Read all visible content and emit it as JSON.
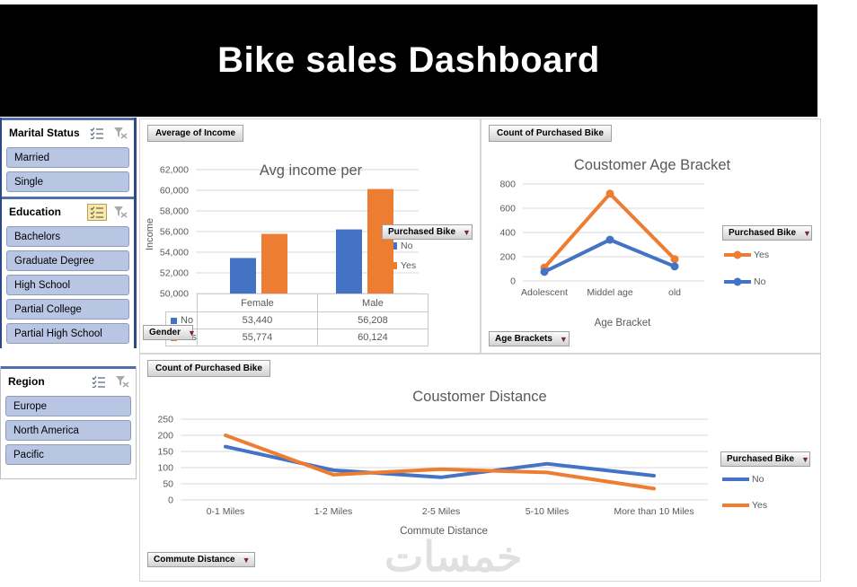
{
  "banner": {
    "title": "Bike sales Dashboard"
  },
  "slicers": [
    {
      "title": "Marital Status",
      "multi_select_active": false,
      "items": [
        "Married",
        "Single"
      ]
    },
    {
      "title": "Education",
      "multi_select_active": true,
      "items": [
        "Bachelors",
        "Graduate Degree",
        "High School",
        "Partial College",
        "Partial High School"
      ]
    },
    {
      "title": "Region",
      "multi_select_active": false,
      "items": [
        "Europe",
        "North America",
        "Pacific"
      ]
    }
  ],
  "watermark": "خمسات",
  "colors": {
    "series_no": "#4472c4",
    "series_yes": "#ed7d31",
    "slicer_item_fill": "#b9c6e3",
    "slicer_accent_blue": "#4f6fad",
    "gridline": "#d9d9d9",
    "axis_text": "#595959",
    "dropdown_arrow": "#7a2638"
  },
  "chart_data": [
    {
      "id": "income",
      "type": "bar",
      "title": "Avg income per",
      "categories": [
        "Female",
        "Male"
      ],
      "series": [
        {
          "name": "No",
          "color": "#4472c4",
          "values": [
            53440,
            56208
          ]
        },
        {
          "name": "Yes",
          "color": "#ed7d31",
          "values": [
            55774,
            60124
          ]
        }
      ],
      "ylabel": "Income",
      "xlabel": "Gender",
      "ylim": [
        50000,
        62000
      ],
      "ytick_step": 2000,
      "yticks": [
        "50,000",
        "52,000",
        "54,000",
        "56,000",
        "58,000",
        "60,000",
        "62,000"
      ],
      "field_button": "Average of Income",
      "series_dropdown": "Purchased Bike",
      "axis_dropdown": "Gender",
      "grid": true,
      "legend_position": "right",
      "table": {
        "col_headers": [
          "Female",
          "Male"
        ],
        "rows": [
          {
            "key": "No",
            "values": [
              "53,440",
              "56,208"
            ]
          },
          {
            "key": "Yes",
            "values": [
              "55,774",
              "60,124"
            ]
          }
        ]
      }
    },
    {
      "id": "age",
      "type": "line",
      "title": "Coustomer Age Bracket",
      "categories": [
        "Adolescent",
        "Middel age",
        "old"
      ],
      "series": [
        {
          "name": "Yes",
          "color": "#ed7d31",
          "values": [
            110,
            720,
            180
          ],
          "marker": true
        },
        {
          "name": "No",
          "color": "#4472c4",
          "values": [
            75,
            340,
            120
          ],
          "marker": true
        }
      ],
      "xlabel": "Age Bracket",
      "ylim": [
        0,
        800
      ],
      "ytick_step": 200,
      "yticks": [
        "0",
        "200",
        "400",
        "600",
        "800"
      ],
      "field_button": "Count of Purchased Bike",
      "series_dropdown": "Purchased Bike",
      "axis_dropdown": "Age Brackets",
      "grid": true,
      "legend_position": "right"
    },
    {
      "id": "distance",
      "type": "line",
      "title": "Coustomer Distance",
      "categories": [
        "0-1 Miles",
        "1-2 Miles",
        "2-5 Miles",
        "5-10 Miles",
        "More than 10 Miles"
      ],
      "series": [
        {
          "name": "No",
          "color": "#4472c4",
          "values": [
            165,
            92,
            70,
            112,
            75
          ],
          "marker": false
        },
        {
          "name": "Yes",
          "color": "#ed7d31",
          "values": [
            200,
            78,
            95,
            85,
            35
          ],
          "marker": false
        }
      ],
      "xlabel": "Commute Distance",
      "ylim": [
        0,
        250
      ],
      "ytick_step": 50,
      "yticks": [
        "0",
        "50",
        "100",
        "150",
        "200",
        "250"
      ],
      "field_button": "Count of Purchased Bike",
      "series_dropdown": "Purchased Bike",
      "axis_dropdown": "Commute Distance",
      "grid": true,
      "legend_position": "right"
    }
  ]
}
